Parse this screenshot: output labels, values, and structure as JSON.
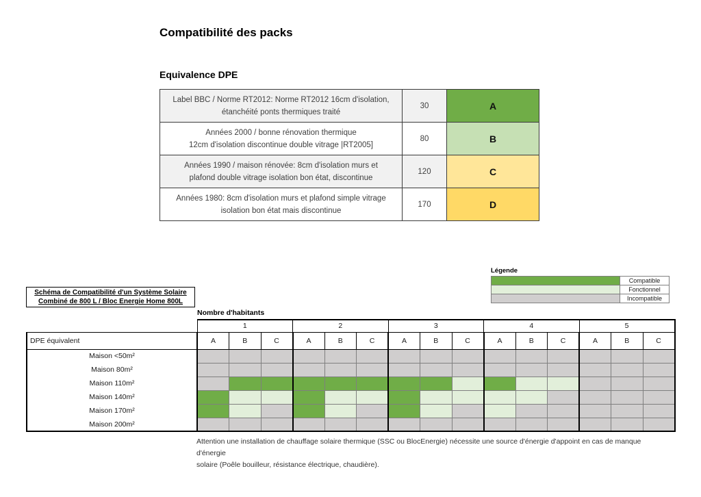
{
  "page": {
    "title": "Compatibilité des packs",
    "subtitle": "Equivalence DPE"
  },
  "equivalence_table": {
    "rows": [
      {
        "description": "Label BBC / Norme RT2012: Norme RT2012 16cm d'isolation,\nétanchéité ponts thermiques traité",
        "value": "30",
        "grade": "A",
        "color": "#70AD47"
      },
      {
        "description": "Années 2000 / bonne rénovation thermique\n12cm d'isolation discontinue double vitrage |RT2005]",
        "value": "80",
        "grade": "B",
        "color": "#C6E0B4"
      },
      {
        "description": "Années 1990 / maison rénovée: 8cm d'isolation murs et\nplafond double vitrage isolation bon état, discontinue",
        "value": "120",
        "grade": "C",
        "color": "#FFE699"
      },
      {
        "description": "Années 1980: 8cm d'isolation murs et plafond simple vitrage\nisolation bon état mais discontinue",
        "value": "170",
        "grade": "D",
        "color": "#FFD966"
      }
    ]
  },
  "legend": {
    "title": "Légende",
    "items": [
      {
        "label": "Compatible",
        "color": "#70AD47"
      },
      {
        "label": "Fonctionnel",
        "color": "#E2EFDA"
      },
      {
        "label": "Incompatible",
        "color": "#D0CECE"
      }
    ]
  },
  "schema_box": {
    "line1": "Schéma de Compatibilité d'un Système Solaire",
    "line2": "Combiné de 800 L / Bloc Energie Home 800L"
  },
  "matrix": {
    "caption": "Nombre d'habitants",
    "row_header": "DPE équivalent",
    "groups": [
      "1",
      "2",
      "3",
      "4",
      "5"
    ],
    "sub_columns": [
      "A",
      "B",
      "C"
    ],
    "cell_states": {
      "c": "compatible",
      "f": "fonctionnel",
      "i": "incompatible"
    },
    "cell_colors": {
      "c": "#70AD47",
      "f": "#E2EFDA",
      "i": "#D0CECE"
    },
    "rows": [
      {
        "label": "Maison <50m²",
        "cells": [
          "i",
          "i",
          "i",
          "i",
          "i",
          "i",
          "i",
          "i",
          "i",
          "i",
          "i",
          "i",
          "i",
          "i",
          "i"
        ]
      },
      {
        "label": "Maison 80m²",
        "cells": [
          "i",
          "i",
          "i",
          "i",
          "i",
          "i",
          "i",
          "i",
          "i",
          "i",
          "i",
          "i",
          "i",
          "i",
          "i"
        ]
      },
      {
        "label": "Maison 110m²",
        "cells": [
          "i",
          "c",
          "c",
          "c",
          "c",
          "c",
          "c",
          "c",
          "f",
          "c",
          "f",
          "f",
          "i",
          "i",
          "i"
        ]
      },
      {
        "label": "Maison 140m²",
        "cells": [
          "c",
          "f",
          "f",
          "c",
          "f",
          "f",
          "c",
          "f",
          "f",
          "f",
          "f",
          "i",
          "i",
          "i",
          "i"
        ]
      },
      {
        "label": "Maison 170m²",
        "cells": [
          "c",
          "f",
          "i",
          "c",
          "f",
          "i",
          "c",
          "f",
          "i",
          "f",
          "i",
          "i",
          "i",
          "i",
          "i"
        ]
      },
      {
        "label": "Maison 200m²",
        "cells": [
          "i",
          "i",
          "i",
          "i",
          "i",
          "i",
          "i",
          "i",
          "i",
          "i",
          "i",
          "i",
          "i",
          "i",
          "i"
        ]
      }
    ]
  },
  "footer_note": "Attention une installation de chauffage solaire thermique (SSC ou BlocEnergie) nécessite une source d'énergie d'appoint en cas de manque d'énergie\nsolaire (Poêle bouilleur, résistance électrique, chaudière)."
}
